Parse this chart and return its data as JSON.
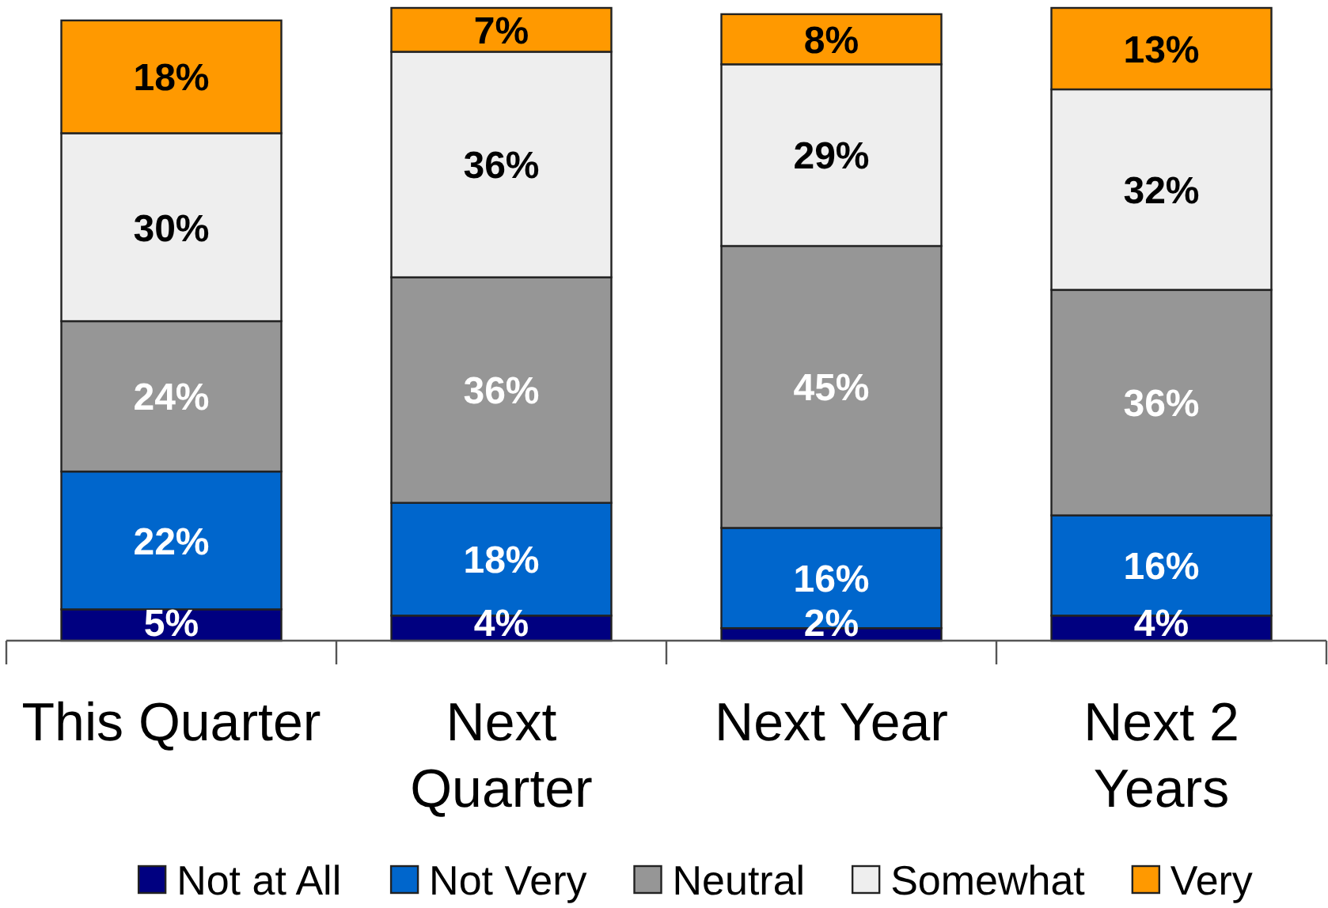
{
  "chart_data": {
    "type": "bar",
    "stacked": true,
    "legend": "bottom",
    "categories": [
      "This Quarter",
      "Next\nQuarter",
      "Next Year",
      "Next 2\nYears"
    ],
    "series": [
      {
        "name": "Not at All",
        "color": "#000080",
        "values": [
          5,
          4,
          2,
          4
        ],
        "value_labels": [
          "5%",
          "4%",
          "2%",
          "4%"
        ]
      },
      {
        "name": "Not Very",
        "color": "#0066cc",
        "values": [
          22,
          18,
          16,
          16
        ],
        "value_labels": [
          "22%",
          "18%",
          "16%",
          "16%"
        ]
      },
      {
        "name": "Neutral",
        "color": "#969696",
        "values": [
          24,
          36,
          45,
          36
        ],
        "value_labels": [
          "24%",
          "36%",
          "45%",
          "36%"
        ]
      },
      {
        "name": "Somewhat",
        "color": "#eeeeee",
        "values": [
          30,
          36,
          29,
          32
        ],
        "value_labels": [
          "30%",
          "36%",
          "29%",
          "32%"
        ]
      },
      {
        "name": "Very",
        "color": "#ff9900",
        "values": [
          18,
          7,
          8,
          13
        ],
        "value_labels": [
          "18%",
          "7%",
          "8%",
          "13%"
        ]
      }
    ]
  }
}
